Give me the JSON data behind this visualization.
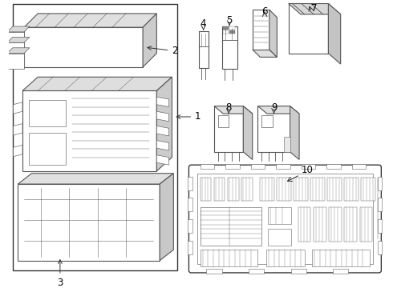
{
  "bg_color": "#ffffff",
  "lc": "#555555",
  "lc_dark": "#333333",
  "lw": 0.6,
  "lw2": 0.8,
  "figsize": [
    4.9,
    3.6
  ],
  "dpi": 100
}
